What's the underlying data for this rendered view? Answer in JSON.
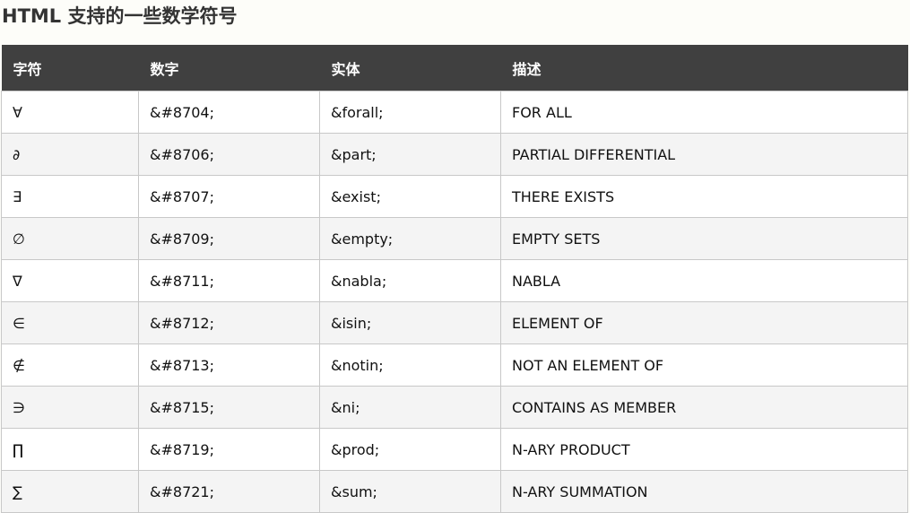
{
  "title": "HTML 支持的一些数学符号",
  "headers": [
    "字符",
    "数字",
    "实体",
    "描述"
  ],
  "rows": [
    [
      "∀",
      "&#8704;",
      "&forall;",
      "FOR ALL"
    ],
    [
      "∂",
      "&#8706;",
      "&part;",
      "PARTIAL DIFFERENTIAL"
    ],
    [
      "∃",
      "&#8707;",
      "&exist;",
      "THERE EXISTS"
    ],
    [
      "∅",
      "&#8709;",
      "&empty;",
      "EMPTY SETS"
    ],
    [
      "∇",
      "&#8711;",
      "&nabla;",
      "NABLA"
    ],
    [
      "∈",
      "&#8712;",
      "&isin;",
      "ELEMENT OF"
    ],
    [
      "∉",
      "&#8713;",
      "&notin;",
      "NOT AN ELEMENT OF"
    ],
    [
      "∋",
      "&#8715;",
      "&ni;",
      "CONTAINS AS MEMBER"
    ],
    [
      "∏",
      "&#8719;",
      "&prod;",
      "N-ARY PRODUCT"
    ],
    [
      "∑",
      "&#8721;",
      "&sum;",
      "N-ARY SUMMATION"
    ]
  ],
  "colors": {
    "header_bg": "#404040",
    "header_text": "#ffffff",
    "stripe": "#f4f4f4",
    "border": "#c8c8c8"
  }
}
